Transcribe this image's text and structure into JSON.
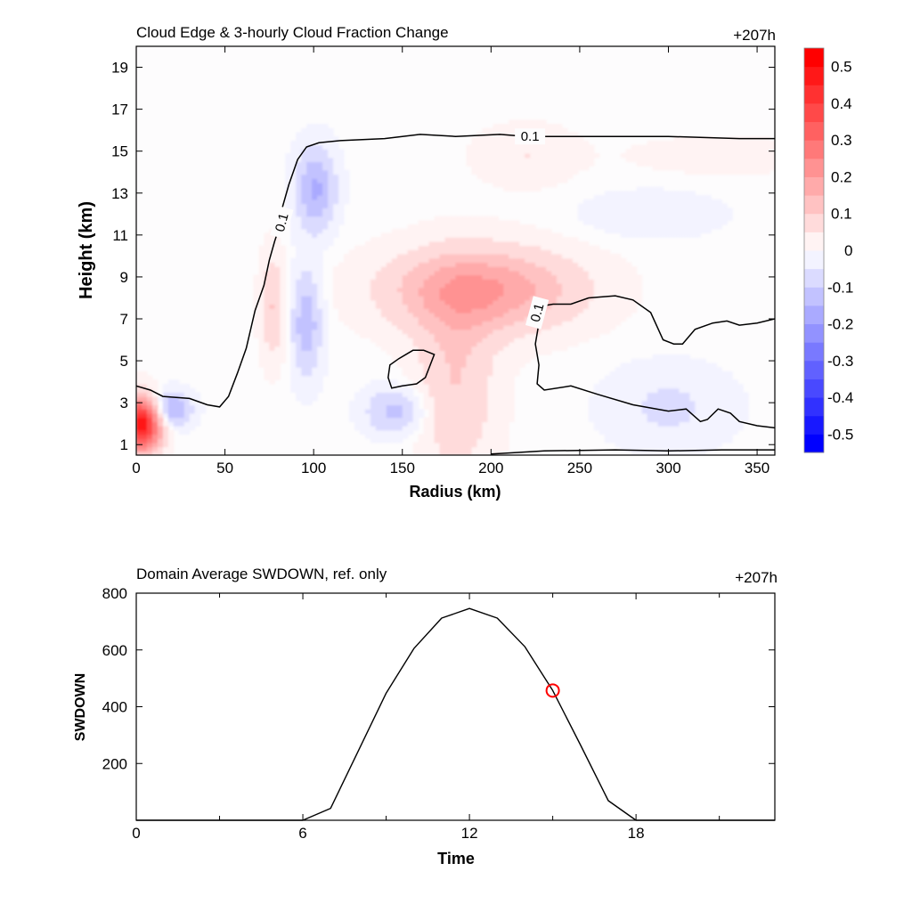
{
  "chart_data": [
    {
      "type": "heatmap",
      "title": "Cloud Edge & 3-hourly Cloud Fraction Change",
      "time_label": "+207h",
      "xlabel": "Radius (km)",
      "ylabel": "Height (km)",
      "xlim": [
        0,
        360
      ],
      "ylim": [
        0.5,
        20
      ],
      "xticks": [
        0,
        50,
        100,
        150,
        200,
        250,
        300,
        350
      ],
      "yticks": [
        1,
        3,
        5,
        7,
        9,
        11,
        13,
        15,
        17,
        19
      ],
      "colorbar": {
        "range": [
          -0.55,
          0.55
        ],
        "levels": 22,
        "tick_values": [
          0.5,
          0.4,
          0.3,
          0.2,
          0.1,
          0,
          -0.1,
          -0.2,
          -0.3,
          -0.4,
          -0.5
        ],
        "tick_labels": [
          "0.5",
          "0.4",
          "0.3",
          "0.2",
          "0.1",
          "0",
          "-0.1",
          "-0.2",
          "-0.3",
          "-0.4",
          "-0.5"
        ],
        "positive_color": "#ff0000",
        "negative_color": "#0000ff",
        "zero_color": "#ffffff"
      },
      "anomalies": [
        {
          "name": "near-core-positive",
          "r": 3,
          "z": 2.0,
          "value": 0.5,
          "sr": 8,
          "sz": 0.9
        },
        {
          "name": "low-negative",
          "r": 19,
          "z": 2.7,
          "value": -0.18,
          "sr": 8,
          "sz": 0.6
        },
        {
          "name": "upper-eyewall-negative",
          "r": 101,
          "z": 13.2,
          "value": -0.16,
          "sr": 8,
          "sz": 1.4
        },
        {
          "name": "mid-eyewall-negative",
          "r": 96,
          "z": 6.8,
          "value": -0.14,
          "sr": 6,
          "sz": 1.8
        },
        {
          "name": "eyewall-positive",
          "r": 77,
          "z": 7.6,
          "value": 0.1,
          "sr": 5,
          "sz": 1.8
        },
        {
          "name": "low-mid-negative",
          "r": 146,
          "z": 2.6,
          "value": -0.12,
          "sr": 12,
          "sz": 0.8
        },
        {
          "name": "midlevel-positive-band",
          "r": 195,
          "z": 8.4,
          "value": 0.2,
          "sr": 38,
          "sz": 1.4
        },
        {
          "name": "lower-positive-plume",
          "r": 180,
          "z": 4.0,
          "value": 0.1,
          "sr": 16,
          "sz": 3.2
        },
        {
          "name": "upper-positive",
          "r": 220,
          "z": 14.8,
          "value": 0.05,
          "sr": 20,
          "sz": 1.0
        },
        {
          "name": "upper-right-positive",
          "r": 330,
          "z": 14.8,
          "value": 0.04,
          "sr": 35,
          "sz": 0.6
        },
        {
          "name": "outer-negative-upper",
          "r": 290,
          "z": 12.0,
          "value": -0.04,
          "sr": 30,
          "sz": 0.8
        },
        {
          "name": "outer-negative-lower",
          "r": 300,
          "z": 2.8,
          "value": -0.06,
          "sr": 25,
          "sz": 1.4
        }
      ],
      "contours": [
        {
          "level": 0.1,
          "label": "0.1",
          "points": [
            [
              0,
              3.8
            ],
            [
              8,
              3.6
            ],
            [
              15,
              3.3
            ],
            [
              30,
              3.2
            ],
            [
              40,
              2.9
            ],
            [
              47,
              2.8
            ],
            [
              52,
              3.3
            ],
            [
              57,
              4.4
            ],
            [
              62,
              5.6
            ],
            [
              67,
              7.4
            ],
            [
              72,
              8.6
            ],
            [
              75,
              9.8
            ],
            [
              78,
              10.7
            ],
            [
              80,
              11.2
            ],
            [
              82,
              12.2
            ],
            [
              86,
              13.4
            ],
            [
              91,
              14.6
            ],
            [
              96,
              15.2
            ],
            [
              103,
              15.4
            ],
            [
              115,
              15.5
            ],
            [
              140,
              15.6
            ],
            [
              150,
              15.7
            ],
            [
              160,
              15.8
            ],
            [
              180,
              15.7
            ],
            [
              205,
              15.8
            ],
            [
              220,
              15.7
            ],
            [
              260,
              15.7
            ],
            [
              300,
              15.7
            ],
            [
              340,
              15.6
            ],
            [
              360,
              15.6
            ]
          ],
          "label_positions": [
            [
              82,
              11.6,
              -75
            ],
            [
              222,
              15.7,
              0
            ]
          ]
        },
        {
          "level": 0.1,
          "label": "0.1",
          "points": [
            [
              227,
              6.8
            ],
            [
              225,
              5.8
            ],
            [
              227,
              4.8
            ],
            [
              226,
              3.9
            ],
            [
              230,
              3.6
            ],
            [
              245,
              3.8
            ],
            [
              260,
              3.4
            ],
            [
              280,
              2.9
            ],
            [
              300,
              2.6
            ],
            [
              310,
              2.7
            ],
            [
              318,
              2.1
            ],
            [
              322,
              2.2
            ],
            [
              328,
              2.7
            ],
            [
              335,
              2.5
            ],
            [
              340,
              2.1
            ],
            [
              350,
              1.9
            ],
            [
              360,
              1.8
            ]
          ],
          "label_positions": [
            [
              226,
              7.3,
              -75
            ]
          ]
        },
        {
          "level": 0.1,
          "label": "",
          "points": [
            [
              228,
              7.6
            ],
            [
              235,
              7.7
            ],
            [
              245,
              7.7
            ],
            [
              255,
              8.0
            ],
            [
              270,
              8.1
            ],
            [
              280,
              7.9
            ],
            [
              290,
              7.3
            ],
            [
              297,
              6.0
            ],
            [
              303,
              5.8
            ],
            [
              308,
              5.8
            ],
            [
              315,
              6.5
            ],
            [
              325,
              6.8
            ],
            [
              333,
              6.9
            ],
            [
              340,
              6.7
            ],
            [
              350,
              6.8
            ],
            [
              360,
              7.0
            ]
          ]
        },
        {
          "level": 0.1,
          "label": "",
          "closed": true,
          "points": [
            [
              144,
              3.7
            ],
            [
              142,
              4.2
            ],
            [
              143,
              4.8
            ],
            [
              148,
              5.1
            ],
            [
              156,
              5.5
            ],
            [
              162,
              5.5
            ],
            [
              168,
              5.3
            ],
            [
              163,
              4.2
            ],
            [
              158,
              3.9
            ],
            [
              150,
              3.8
            ],
            [
              144,
              3.7
            ]
          ]
        },
        {
          "level": 0.1,
          "label": "",
          "points": [
            [
              200,
              0.55
            ],
            [
              230,
              0.7
            ],
            [
              270,
              0.75
            ],
            [
              300,
              0.7
            ],
            [
              330,
              0.75
            ],
            [
              360,
              0.75
            ]
          ]
        }
      ]
    },
    {
      "type": "line",
      "title": "Domain Average SWDOWN, ref. only",
      "time_label": "+207h",
      "xlabel": "Time",
      "ylabel": "SWDOWN",
      "xlim": [
        0,
        23
      ],
      "ylim": [
        0,
        800
      ],
      "xticks_major": [
        0,
        6,
        12,
        18
      ],
      "xticks_minor": [
        3,
        9,
        15,
        21
      ],
      "yticks": [
        200,
        400,
        600,
        800
      ],
      "series": [
        {
          "name": "SWDOWN",
          "color": "#000000",
          "x": [
            0,
            1,
            2,
            3,
            4,
            5,
            6,
            7,
            8,
            9,
            10,
            11,
            12,
            13,
            14,
            15,
            16,
            17,
            18,
            19,
            20,
            21,
            22,
            23
          ],
          "values": [
            0,
            0,
            0,
            0,
            0,
            0,
            0,
            42,
            245,
            448,
            605,
            712,
            746,
            712,
            611,
            457,
            265,
            69,
            0,
            0,
            0,
            0,
            0,
            0
          ]
        }
      ],
      "marker": {
        "x": 15,
        "y": 457,
        "color": "#ff0000",
        "shape": "open-circle"
      }
    }
  ]
}
